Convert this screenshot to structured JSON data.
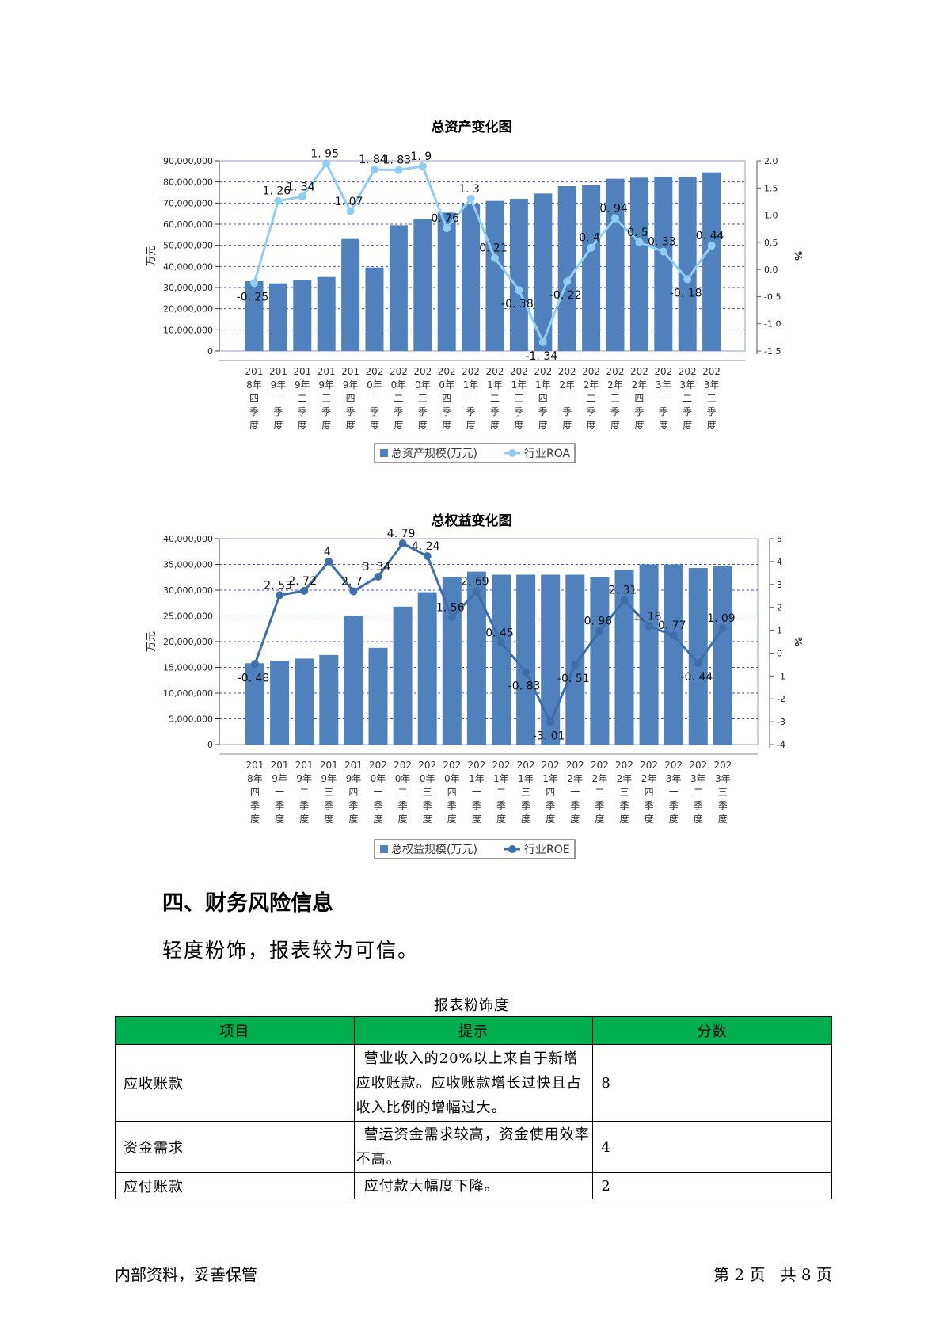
{
  "charts_common": {
    "x_labels": [
      [
        "201",
        "8年",
        "四",
        "季",
        "度"
      ],
      [
        "201",
        "9年",
        "一",
        "季",
        "度"
      ],
      [
        "201",
        "9年",
        "二",
        "季",
        "度"
      ],
      [
        "201",
        "9年",
        "三",
        "季",
        "度"
      ],
      [
        "201",
        "9年",
        "四",
        "季",
        "度"
      ],
      [
        "202",
        "0年",
        "一",
        "季",
        "度"
      ],
      [
        "202",
        "0年",
        "二",
        "季",
        "度"
      ],
      [
        "202",
        "0年",
        "三",
        "季",
        "度"
      ],
      [
        "202",
        "0年",
        "四",
        "季",
        "度"
      ],
      [
        "202",
        "1年",
        "一",
        "季",
        "度"
      ],
      [
        "202",
        "1年",
        "二",
        "季",
        "度"
      ],
      [
        "202",
        "1年",
        "三",
        "季",
        "度"
      ],
      [
        "202",
        "1年",
        "四",
        "季",
        "度"
      ],
      [
        "202",
        "2年",
        "一",
        "季",
        "度"
      ],
      [
        "202",
        "2年",
        "二",
        "季",
        "度"
      ],
      [
        "202",
        "2年",
        "三",
        "季",
        "度"
      ],
      [
        "202",
        "2年",
        "四",
        "季",
        "度"
      ],
      [
        "202",
        "3年",
        "一",
        "季",
        "度"
      ],
      [
        "202",
        "3年",
        "二",
        "季",
        "度"
      ],
      [
        "202",
        "3年",
        "三",
        "季",
        "度"
      ]
    ],
    "bar_color": "#4f81bd"
  },
  "chart_data": [
    {
      "type": "bar",
      "title": "总资产变化图",
      "ylabel": "万元",
      "y2label": "%",
      "ylim": [
        0,
        90000000
      ],
      "yticks": [
        "0",
        "10,000,000",
        "20,000,000",
        "30,000,000",
        "40,000,000",
        "50,000,000",
        "60,000,000",
        "70,000,000",
        "80,000,000",
        "90,000,000"
      ],
      "y2lim": [
        -1.5,
        2.0
      ],
      "y2ticks": [
        "-1.5",
        "-1.0",
        "-0.5",
        "0.0",
        "0.5",
        "1.0",
        "1.5",
        "2.0"
      ],
      "grid": true,
      "line_color": "#8fcdf2",
      "series": [
        {
          "name": "总资产规模(万元)",
          "kind": "bar",
          "values": [
            33000000,
            32000000,
            33500000,
            35000000,
            53000000,
            39500000,
            59500000,
            62500000,
            65500000,
            69500000,
            71000000,
            72000000,
            74500000,
            78000000,
            78500000,
            81500000,
            82000000,
            82500000,
            82500000,
            84500000
          ]
        },
        {
          "name": "行业ROA",
          "kind": "line",
          "values": [
            -0.25,
            1.26,
            1.34,
            1.95,
            1.07,
            1.84,
            1.83,
            1.9,
            0.76,
            1.3,
            0.21,
            -0.38,
            -1.34,
            -0.22,
            0.4,
            0.94,
            0.5,
            0.33,
            -0.18,
            0.44
          ],
          "labels": [
            "-0.25",
            "1.26",
            "1.34",
            "1.95",
            "1.07",
            "1.84",
            "1.83",
            "1.9",
            "0.76",
            "1.3",
            "0.21",
            "-0.38",
            "-1.34",
            "-0.22",
            "0.4",
            "0.94",
            "0.5",
            "0.33",
            "-0.18",
            "0.44"
          ]
        }
      ],
      "legend": "bottom"
    },
    {
      "type": "bar",
      "title": "总权益变化图",
      "ylabel": "万元",
      "y2label": "%",
      "ylim": [
        0,
        40000000
      ],
      "yticks": [
        "0",
        "5,000,000",
        "10,000,000",
        "15,000,000",
        "20,000,000",
        "25,000,000",
        "30,000,000",
        "35,000,000",
        "40,000,000"
      ],
      "y2lim": [
        -4,
        5
      ],
      "y2ticks": [
        "-4",
        "-3",
        "-2",
        "-1",
        "0",
        "1",
        "2",
        "3",
        "4",
        "5"
      ],
      "grid": true,
      "line_color": "#3f6faa",
      "series": [
        {
          "name": "总权益规模(万元)",
          "kind": "bar",
          "values": [
            15800000,
            16300000,
            16700000,
            17400000,
            25000000,
            18800000,
            26800000,
            29600000,
            32600000,
            33600000,
            33000000,
            33000000,
            33000000,
            33000000,
            32500000,
            34000000,
            35000000,
            35000000,
            34300000,
            34700000
          ]
        },
        {
          "name": "行业ROE",
          "kind": "line",
          "values": [
            -0.48,
            2.53,
            2.72,
            4,
            2.7,
            3.34,
            4.79,
            4.24,
            1.56,
            2.69,
            0.45,
            -0.83,
            -3.01,
            -0.51,
            0.96,
            2.31,
            1.18,
            0.77,
            -0.44,
            1.09
          ],
          "labels": [
            "-0.48",
            "2.53",
            "2.72",
            "4",
            "2.7",
            "3.34",
            "4.79",
            "4.24",
            "1.56",
            "2.69",
            "0.45",
            "-0.83",
            "-3.01",
            "-0.51",
            "0.96",
            "2.31",
            "1.18",
            "0.77",
            "-0.44",
            "1.09"
          ]
        }
      ],
      "legend": "bottom"
    }
  ],
  "section": {
    "heading": "四、财务风险信息",
    "summary": "轻度粉饰，报表较为可信。"
  },
  "table": {
    "caption": "报表粉饰度",
    "headers": [
      "项目",
      "提示",
      "分数"
    ],
    "header_color": "#00b050",
    "rows": [
      {
        "item": "应收账款",
        "hint": "营业收入的20%以上来自于新增应收账款。应收账款增长过快且占收入比例的增幅过大。",
        "score": "8"
      },
      {
        "item": "资金需求",
        "hint": "营运资金需求较高，资金使用效率不高。",
        "score": "4"
      },
      {
        "item": "应付账款",
        "hint": "应付款大幅度下降。",
        "score": "2"
      }
    ]
  },
  "footer": {
    "left": "内部资料，妥善保管",
    "right": "第 2 页   共 8 页"
  }
}
